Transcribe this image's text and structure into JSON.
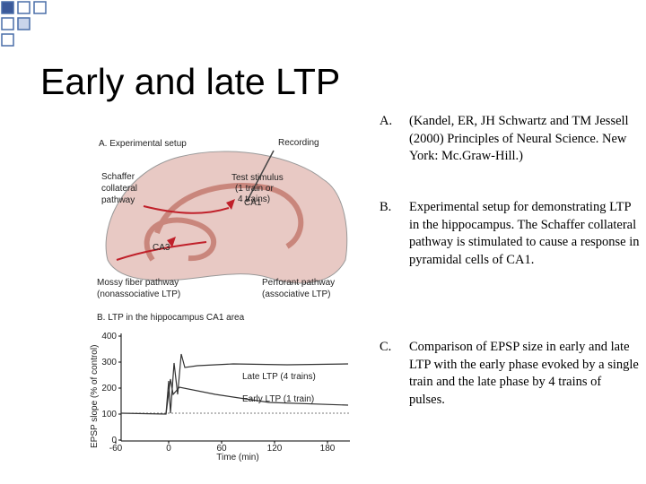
{
  "slide": {
    "title": "Early and late LTP",
    "figure": {
      "labels": [
        "A. Experimental setup",
        "Recording",
        "Schaffer",
        "collateral",
        "pathway",
        "Test stimulus",
        "(1 train or",
        "4 trains)",
        "CA1",
        "CA3",
        "Mossy fiber pathway",
        "(nonassociative LTP)",
        "Perforant pathway",
        "(associative LTP)",
        "B. LTP in the hippocampus CA1 area",
        "Late LTP (4 trains)",
        "Early LTP (1 train)"
      ],
      "y_axis_label": "EPSP slope (% of control)",
      "y_ticks": [
        "400",
        "300",
        "200",
        "100",
        "0"
      ],
      "x_ticks": [
        "-60",
        "0",
        "60",
        "120",
        "180"
      ],
      "x_axis_label": "Time (min)"
    },
    "items": [
      {
        "letter": "A.",
        "text": "(Kandel, ER, JH Schwartz and TM Jessell (2000) Principles of Neural Science. New York: Mc.Graw-Hill.)"
      },
      {
        "letter": "B.",
        "text": "Experimental setup for demonstrating LTP in the hippocampus. The Schaffer collateral pathway is stimulated to cause a response in pyramidal cells of CA1."
      },
      {
        "letter": "C.",
        "text": "Comparison of EPSP size in early and late LTP with the early phase evoked by a single train and the late phase by 4 trains of pulses."
      }
    ]
  }
}
